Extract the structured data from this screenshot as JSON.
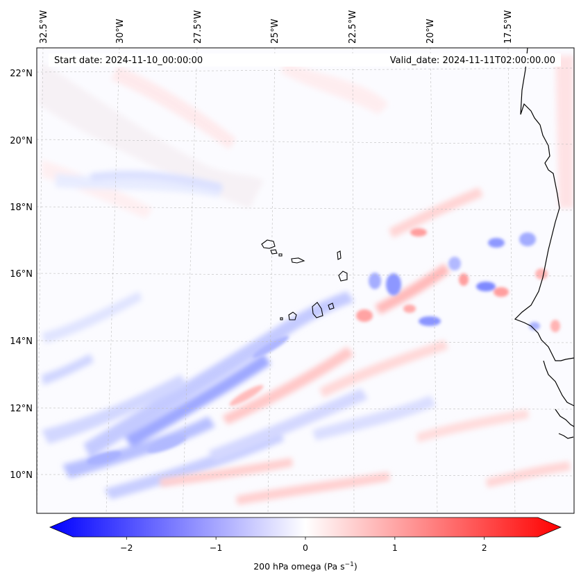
{
  "map": {
    "header_left": "Start date: 2024-11-10_00:00:00",
    "header_right": "Valid_date: 2024-11-11T02:00:00.00",
    "lon_labels": [
      "32.5°W",
      "30°W",
      "27.5°W",
      "25°W",
      "22.5°W",
      "20°W",
      "17.5°W"
    ],
    "lat_labels": [
      "22°N",
      "20°N",
      "18°N",
      "16°N",
      "14°N",
      "12°N",
      "10°N"
    ],
    "colorbar": {
      "label_main": "200 hPa omega (Pa s",
      "label_exp": "−1",
      "label_close": ")",
      "ticks": [
        "−2",
        "−1",
        "0",
        "1",
        "2"
      ],
      "range": [
        -2.6,
        2.6
      ],
      "colors": {
        "negative": "#0000ff",
        "zero": "#ffffff",
        "positive": "#ff0000"
      }
    },
    "colors": {
      "coastline": "#000000",
      "gridline": "#bbbbbb",
      "frame": "#000000"
    }
  }
}
